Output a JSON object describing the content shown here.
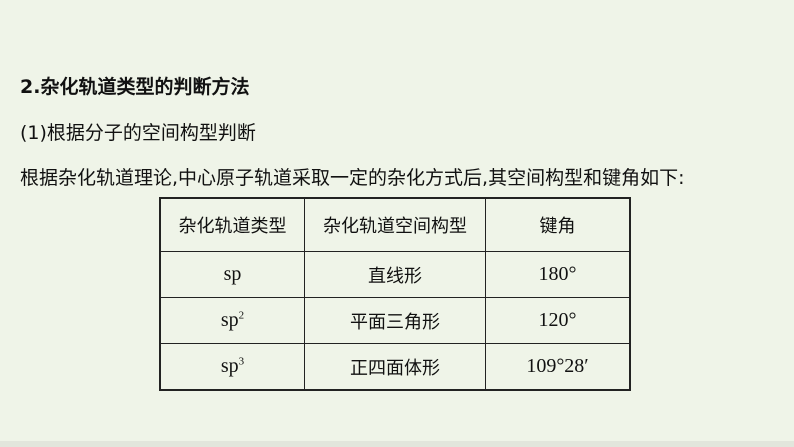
{
  "heading": "2.杂化轨道类型的判断方法",
  "subheading": "(1)根据分子的空间构型判断",
  "paragraph": "根据杂化轨道理论,中心原子轨道采取一定的杂化方式后,其空间构型和键角如下:",
  "table": {
    "headers": [
      "杂化轨道类型",
      "杂化轨道空间构型",
      "键角"
    ],
    "rows": [
      {
        "type": "sp",
        "sup": "",
        "shape": "直线形",
        "angle": "180°"
      },
      {
        "type": "sp",
        "sup": "2",
        "shape": "平面三角形",
        "angle": "120°"
      },
      {
        "type": "sp",
        "sup": "3",
        "shape": "正四面体形",
        "angle": "109°28′"
      }
    ]
  }
}
